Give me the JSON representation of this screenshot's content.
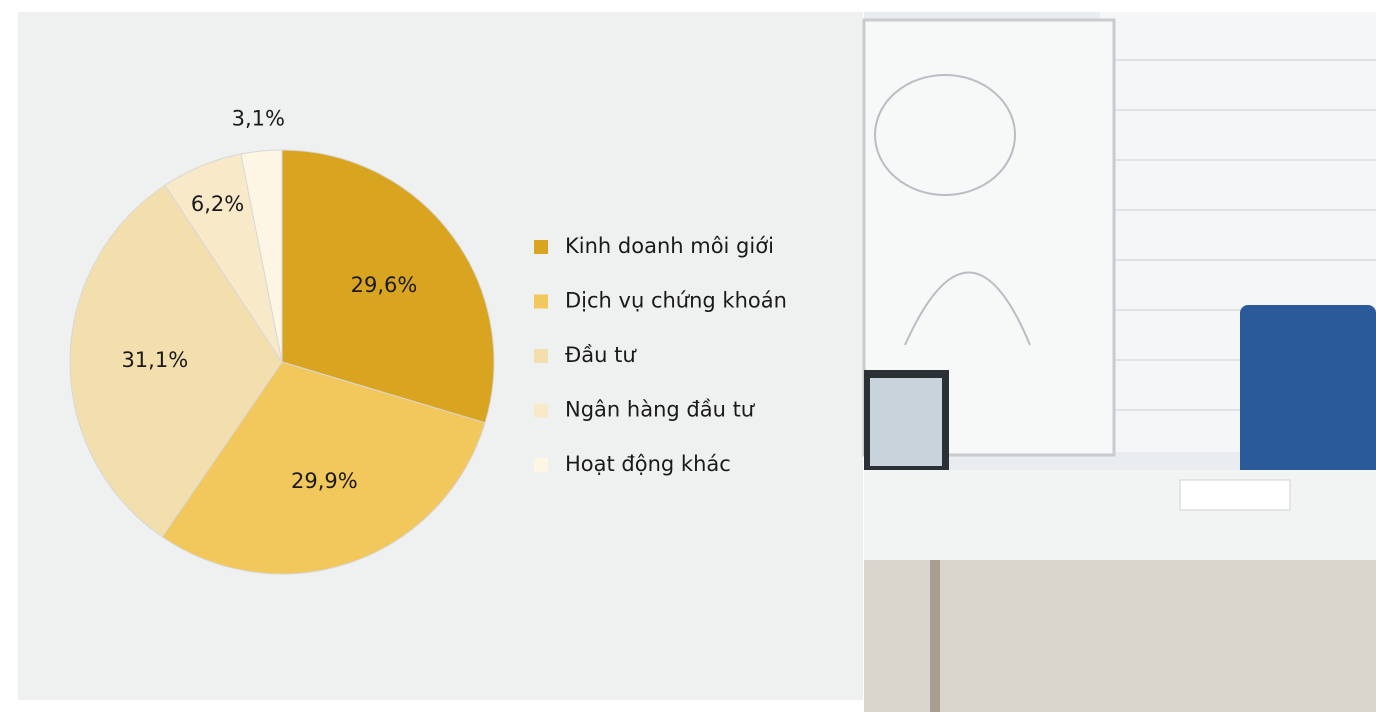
{
  "chart_data": {
    "type": "pie",
    "categories": [
      "Kinh doanh môi giới",
      "Dịch vụ chứng khoán",
      "Đầu tư",
      "Ngân hàng đầu tư",
      "Hoạt động khác"
    ],
    "values": [
      29.6,
      29.9,
      31.1,
      6.2,
      3.1
    ],
    "value_labels": [
      "29,6%",
      "29,9%",
      "31,1%",
      "6,2%",
      "3,1%"
    ],
    "colors": [
      "#d9a521",
      "#f2c75c",
      "#f3dfae",
      "#f8e9c8",
      "#fdf6e4"
    ],
    "legend": "right"
  }
}
